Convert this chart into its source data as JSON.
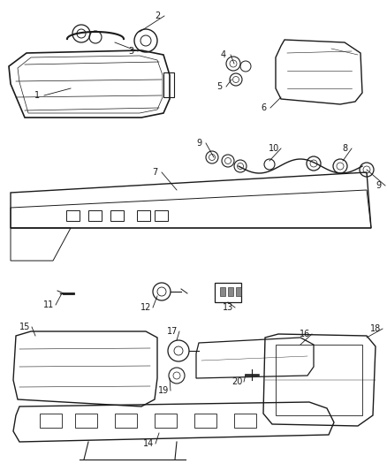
{
  "background_color": "#ffffff",
  "line_color": "#1a1a1a",
  "text_color": "#1a1a1a",
  "fig_width": 4.38,
  "fig_height": 5.33,
  "dpi": 100
}
